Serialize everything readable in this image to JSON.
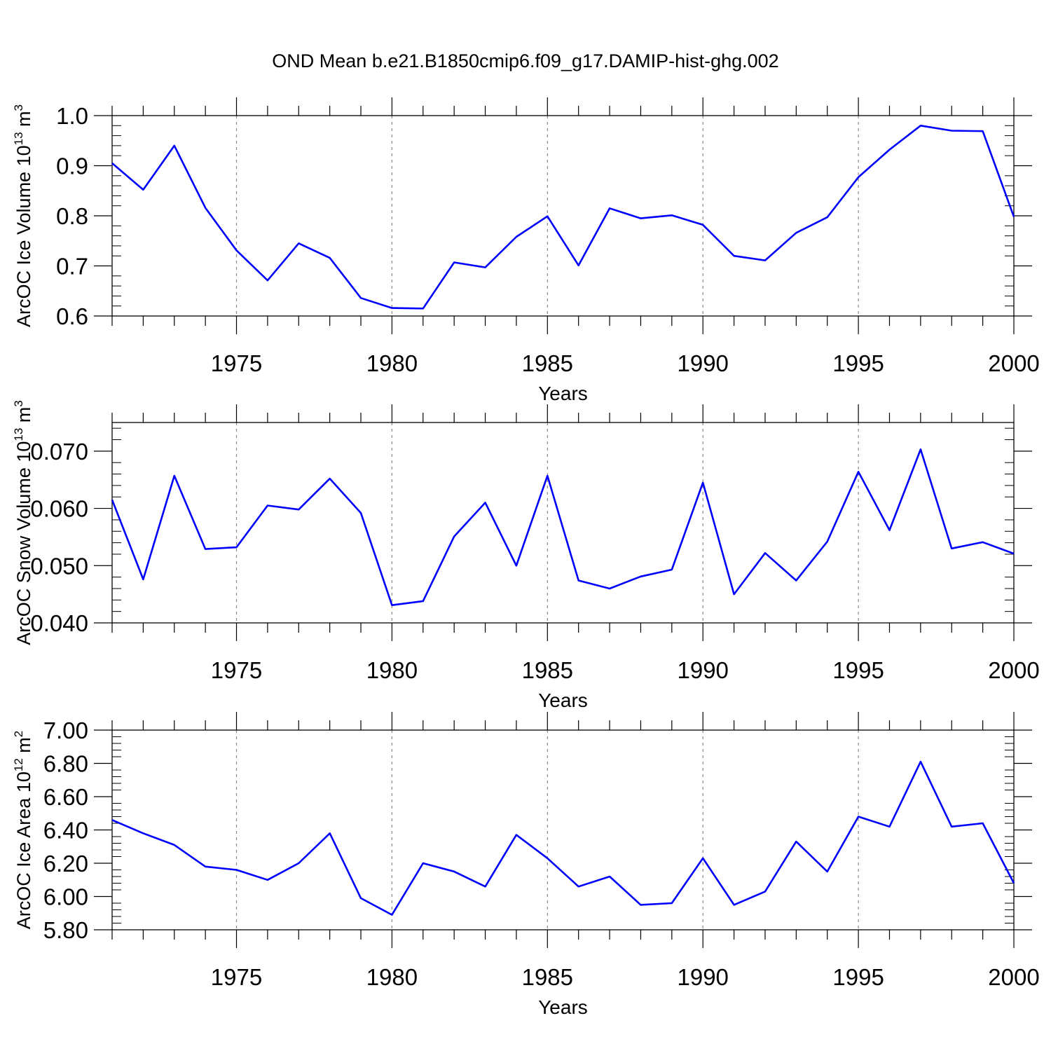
{
  "figure": {
    "title": "OND Mean b.e21.B1850cmip6.f09_g17.DAMIP-hist-ghg.002",
    "line_color": "#0000ff"
  },
  "chart_data": [
    {
      "type": "line",
      "name": "ice-volume",
      "ylabel": {
        "main": "ArcOC Ice Volume 10",
        "exp": "13",
        "unit": " m",
        "unit_exp": "3"
      },
      "xlabel": "Years",
      "xlim": [
        1971,
        2000
      ],
      "ylim": [
        0.6,
        1.0
      ],
      "x_ticks": [
        1975,
        1980,
        1985,
        1990,
        1995,
        2000
      ],
      "y_ticks": [
        0.6,
        0.7,
        0.8,
        0.9,
        1.0
      ],
      "y_tick_labels": [
        "0.6",
        "0.7",
        "0.8",
        "0.9",
        "1.0"
      ],
      "x": [
        1971,
        1972,
        1973,
        1974,
        1975,
        1976,
        1977,
        1978,
        1979,
        1980,
        1981,
        1982,
        1983,
        1984,
        1985,
        1986,
        1987,
        1988,
        1989,
        1990,
        1991,
        1992,
        1993,
        1994,
        1995,
        1996,
        1997,
        1998,
        1999,
        2000
      ],
      "y": [
        0.905,
        0.852,
        0.94,
        0.816,
        0.731,
        0.671,
        0.745,
        0.716,
        0.636,
        0.616,
        0.615,
        0.707,
        0.697,
        0.758,
        0.799,
        0.701,
        0.815,
        0.795,
        0.801,
        0.782,
        0.72,
        0.711,
        0.766,
        0.797,
        0.877,
        0.932,
        0.98,
        0.97,
        0.969,
        0.798
      ]
    },
    {
      "type": "line",
      "name": "snow-volume",
      "ylabel": {
        "main": "ArcOC Snow Volume 10",
        "exp": "13",
        "unit": " m",
        "unit_exp": "3"
      },
      "xlabel": "Years",
      "xlim": [
        1971,
        2000
      ],
      "ylim": [
        0.04,
        0.075
      ],
      "x_ticks": [
        1975,
        1980,
        1985,
        1990,
        1995,
        2000
      ],
      "y_ticks": [
        0.04,
        0.05,
        0.06,
        0.07
      ],
      "y_tick_labels": [
        "0.040",
        "0.050",
        "0.060",
        "0.070"
      ],
      "x": [
        1971,
        1972,
        1973,
        1974,
        1975,
        1976,
        1977,
        1978,
        1979,
        1980,
        1981,
        1982,
        1983,
        1984,
        1985,
        1986,
        1987,
        1988,
        1989,
        1990,
        1991,
        1992,
        1993,
        1994,
        1995,
        1996,
        1997,
        1998,
        1999,
        2000
      ],
      "y": [
        0.0615,
        0.0476,
        0.0657,
        0.0529,
        0.0532,
        0.0605,
        0.0598,
        0.0652,
        0.0592,
        0.0431,
        0.0438,
        0.0551,
        0.061,
        0.05,
        0.0657,
        0.0474,
        0.046,
        0.0481,
        0.0493,
        0.0645,
        0.045,
        0.0522,
        0.0474,
        0.0542,
        0.0664,
        0.0562,
        0.0703,
        0.053,
        0.0541,
        0.0521
      ]
    },
    {
      "type": "line",
      "name": "ice-area",
      "ylabel": {
        "main": "ArcOC Ice Area 10",
        "exp": "12",
        "unit": " m",
        "unit_exp": "2"
      },
      "xlabel": "Years",
      "xlim": [
        1971,
        2000
      ],
      "ylim": [
        5.8,
        7.0
      ],
      "x_ticks": [
        1975,
        1980,
        1985,
        1990,
        1995,
        2000
      ],
      "y_ticks": [
        5.8,
        6.0,
        6.2,
        6.4,
        6.6,
        6.8,
        7.0
      ],
      "y_tick_labels": [
        "5.80",
        "6.00",
        "6.20",
        "6.40",
        "6.60",
        "6.80",
        "7.00"
      ],
      "x": [
        1971,
        1972,
        1973,
        1974,
        1975,
        1976,
        1977,
        1978,
        1979,
        1980,
        1981,
        1982,
        1983,
        1984,
        1985,
        1986,
        1987,
        1988,
        1989,
        1990,
        1991,
        1992,
        1993,
        1994,
        1995,
        1996,
        1997,
        1998,
        1999,
        2000
      ],
      "y": [
        6.46,
        6.38,
        6.31,
        6.18,
        6.16,
        6.1,
        6.2,
        6.38,
        5.99,
        5.89,
        6.2,
        6.15,
        6.06,
        6.37,
        6.23,
        6.06,
        6.12,
        5.95,
        5.96,
        6.23,
        5.95,
        6.03,
        6.33,
        6.15,
        6.48,
        6.42,
        6.81,
        6.42,
        6.44,
        6.08
      ]
    }
  ]
}
